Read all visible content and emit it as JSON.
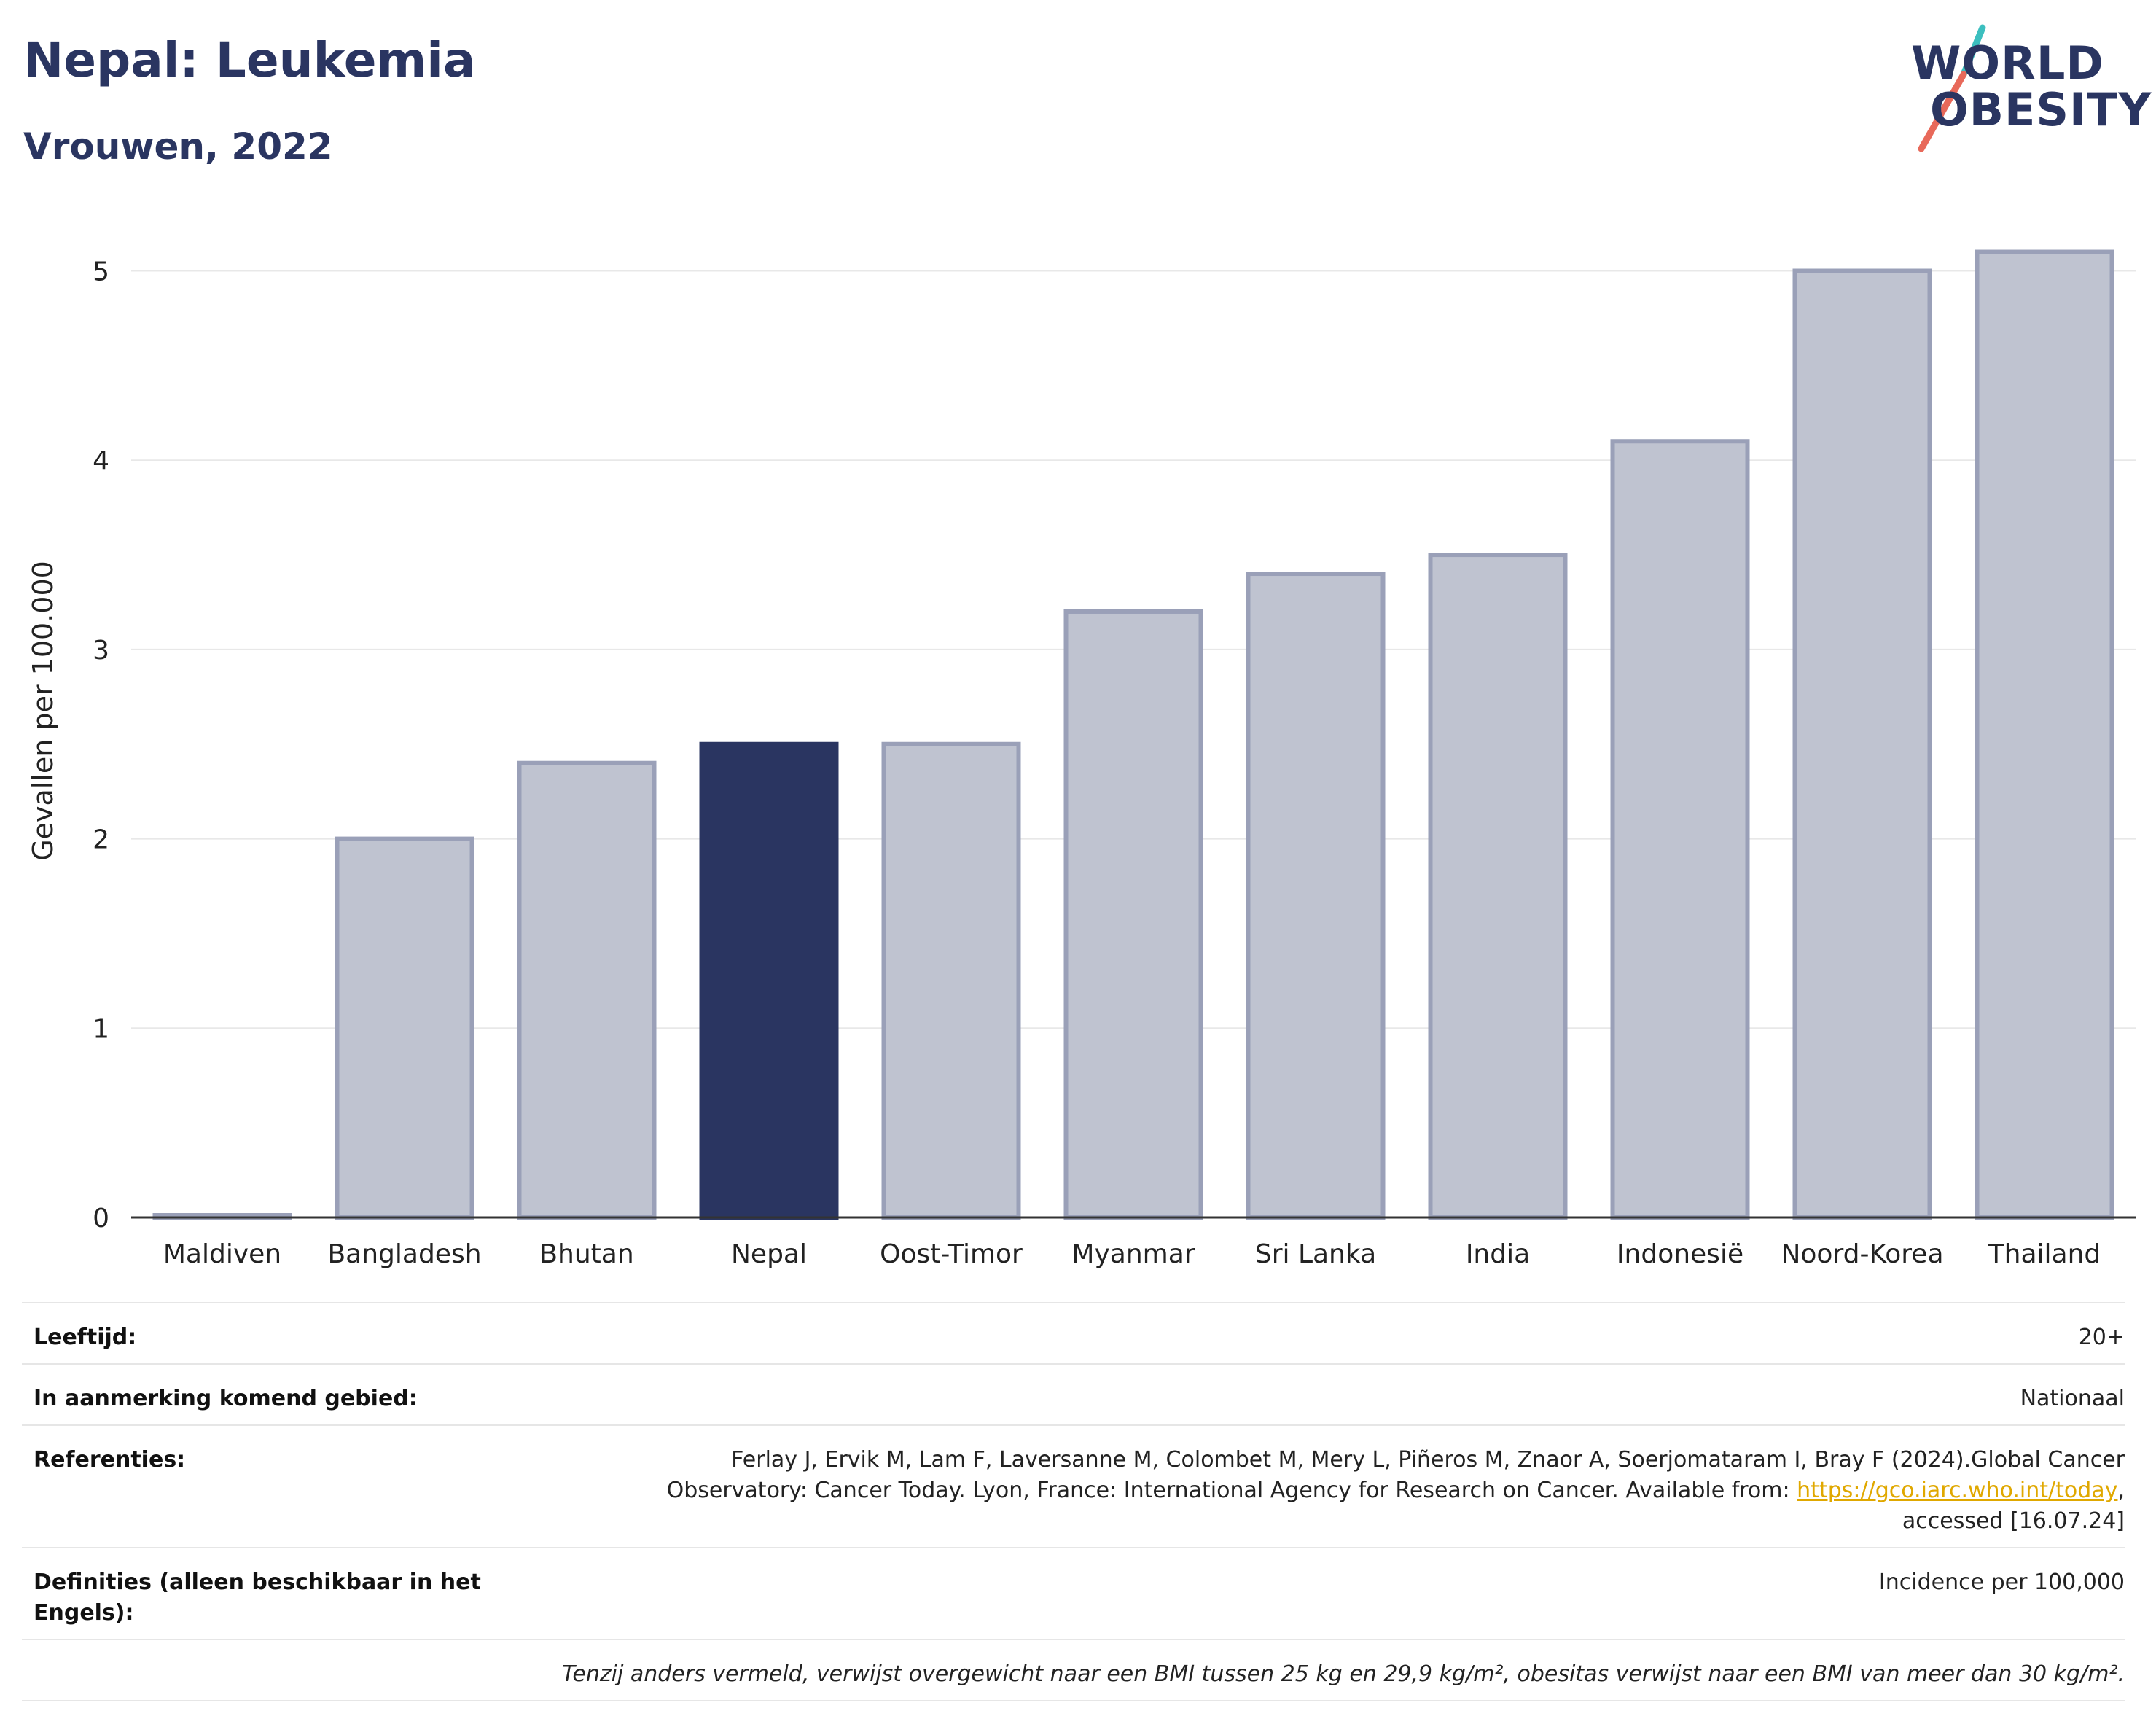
{
  "header": {
    "title": "Nepal: Leukemia",
    "subtitle": "Vrouwen, 2022"
  },
  "logo": {
    "line1": "WORLD",
    "line2": "OBESITY",
    "slash_colors": [
      "#3cbfbf",
      "#e8695a"
    ]
  },
  "colors": {
    "highlight": "#2a3561",
    "bar_fill": "#bfc3d0",
    "bar_border": "#9aa0b8",
    "grid": "#e8e8e8",
    "link": "#e0a800"
  },
  "chart_data": {
    "type": "bar",
    "categories": [
      "Maldiven",
      "Bangladesh",
      "Bhutan",
      "Nepal",
      "Oost-Timor",
      "Myanmar",
      "Sri Lanka",
      "India",
      "Indonesië",
      "Noord-Korea",
      "Thailand"
    ],
    "values": [
      0.01,
      2.0,
      2.4,
      2.5,
      2.5,
      3.2,
      3.4,
      3.5,
      4.1,
      5.0,
      5.1
    ],
    "highlight": "Nepal",
    "ylabel": "Gevallen per 100.000",
    "xlabel": "",
    "ylim": [
      0,
      5.35
    ],
    "yticks": [
      0,
      1,
      2,
      3,
      4,
      5
    ],
    "grid": true
  },
  "info": {
    "age_label": "Leeftijd:",
    "age_value": "20+",
    "area_label": "In aanmerking komend gebied:",
    "area_value": "Nationaal",
    "ref_label": "Referenties:",
    "ref_text_1": "Ferlay J, Ervik M, Lam F, Laversanne M, Colombet M, Mery L, Piñeros M, Znaor A, Soerjomataram I, Bray F (2024).Global Cancer",
    "ref_text_2": "Observatory: Cancer Today. Lyon, France: International Agency for Research on Cancer. Available from: ",
    "ref_link": "https://gco.iarc.who.int/today",
    "ref_text_3": ",",
    "ref_text_4": "accessed [16.07.24]",
    "def_label": "Definities (alleen beschikbaar in het Engels):",
    "def_value": "Incidence per 100,000",
    "note": "Tenzij anders vermeld, verwijst overgewicht naar een BMI tussen 25 kg en 29,9 kg/m², obesitas verwijst naar een BMI van meer dan 30 kg/m²."
  }
}
